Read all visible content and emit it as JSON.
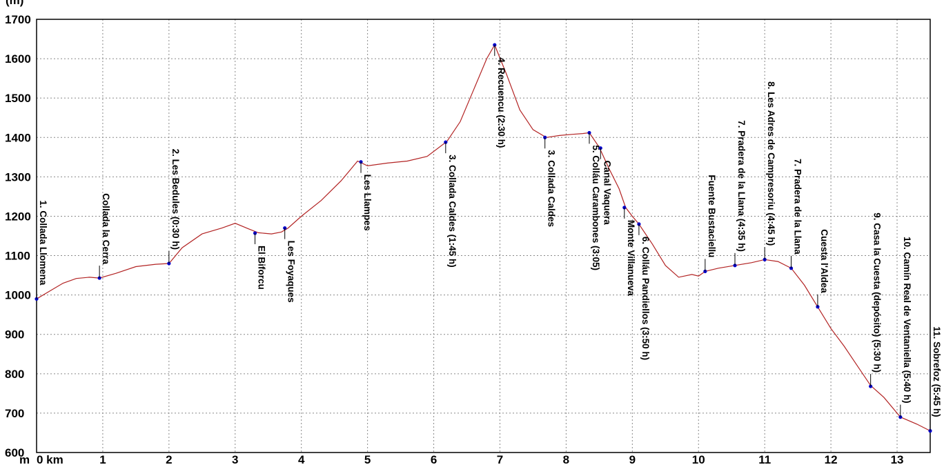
{
  "chart_data": {
    "type": "line",
    "y_unit_label": "(m)",
    "x_axis_prefix": "m",
    "x_first_tick_label": "0 km",
    "ylim": [
      600,
      1700
    ],
    "xlim": [
      0,
      13.5
    ],
    "yticks": [
      600,
      700,
      800,
      900,
      1000,
      1100,
      1200,
      1300,
      1400,
      1500,
      1600,
      1700
    ],
    "xticks": [
      0,
      1,
      2,
      3,
      4,
      5,
      6,
      7,
      8,
      9,
      10,
      11,
      12,
      13
    ],
    "grid": true,
    "colors": {
      "line": "#b22222",
      "point": "#0000cc",
      "grid": "#888888"
    },
    "profile": [
      [
        0,
        990
      ],
      [
        0.2,
        1010
      ],
      [
        0.4,
        1030
      ],
      [
        0.6,
        1042
      ],
      [
        0.8,
        1045
      ],
      [
        0.95,
        1043
      ],
      [
        1.2,
        1055
      ],
      [
        1.5,
        1072
      ],
      [
        1.8,
        1078
      ],
      [
        2.0,
        1080
      ],
      [
        2.2,
        1120
      ],
      [
        2.5,
        1155
      ],
      [
        2.8,
        1170
      ],
      [
        3.0,
        1182
      ],
      [
        3.2,
        1168
      ],
      [
        3.35,
        1158
      ],
      [
        3.55,
        1155
      ],
      [
        3.7,
        1160
      ],
      [
        3.8,
        1170
      ],
      [
        4.0,
        1200
      ],
      [
        4.3,
        1240
      ],
      [
        4.6,
        1290
      ],
      [
        4.85,
        1340
      ],
      [
        5.0,
        1328
      ],
      [
        5.3,
        1335
      ],
      [
        5.6,
        1340
      ],
      [
        5.9,
        1352
      ],
      [
        6.2,
        1390
      ],
      [
        6.4,
        1440
      ],
      [
        6.6,
        1520
      ],
      [
        6.8,
        1600
      ],
      [
        6.92,
        1635
      ],
      [
        7.1,
        1560
      ],
      [
        7.3,
        1470
      ],
      [
        7.5,
        1420
      ],
      [
        7.7,
        1400
      ],
      [
        7.9,
        1405
      ],
      [
        8.1,
        1408
      ],
      [
        8.25,
        1410
      ],
      [
        8.35,
        1412
      ],
      [
        8.5,
        1375
      ],
      [
        8.65,
        1320
      ],
      [
        8.8,
        1270
      ],
      [
        8.9,
        1222
      ],
      [
        9.0,
        1200
      ],
      [
        9.1,
        1180
      ],
      [
        9.3,
        1130
      ],
      [
        9.5,
        1075
      ],
      [
        9.7,
        1045
      ],
      [
        9.9,
        1052
      ],
      [
        10.0,
        1048
      ],
      [
        10.1,
        1060
      ],
      [
        10.3,
        1068
      ],
      [
        10.55,
        1075
      ],
      [
        10.8,
        1082
      ],
      [
        11.0,
        1090
      ],
      [
        11.2,
        1085
      ],
      [
        11.4,
        1068
      ],
      [
        11.6,
        1025
      ],
      [
        11.8,
        970
      ],
      [
        12.0,
        915
      ],
      [
        12.2,
        870
      ],
      [
        12.4,
        820
      ],
      [
        12.6,
        770
      ],
      [
        12.8,
        740
      ],
      [
        13.05,
        690
      ],
      [
        13.3,
        672
      ],
      [
        13.5,
        655
      ]
    ],
    "waypoints": [
      {
        "km": 0,
        "elev": 990,
        "label": "1. Collada Llomena",
        "side": "above"
      },
      {
        "km": 0.95,
        "elev": 1043,
        "label": "Collada la Cerra",
        "side": "above"
      },
      {
        "km": 2.0,
        "elev": 1080,
        "label": "2. Les Bedules (0:30 h)",
        "side": "above"
      },
      {
        "km": 3.3,
        "elev": 1157,
        "label": "El Biforcu",
        "side": "below"
      },
      {
        "km": 3.75,
        "elev": 1170,
        "label": "Les Foyaques",
        "side": "below"
      },
      {
        "km": 4.9,
        "elev": 1338,
        "label": "Les Llampes",
        "side": "below"
      },
      {
        "km": 6.18,
        "elev": 1388,
        "label": "3. Collada Caldes (1:45 h)",
        "side": "below"
      },
      {
        "km": 6.92,
        "elev": 1635,
        "label": "4. Recuencu (2:30 h)",
        "side": "below"
      },
      {
        "km": 7.68,
        "elev": 1400,
        "label": "3. Collada Caldes",
        "side": "below"
      },
      {
        "km": 8.35,
        "elev": 1412,
        "label": "5. Colláu Carambones (3:05)",
        "side": "below"
      },
      {
        "km": 8.52,
        "elev": 1373,
        "label": "Canal Vaquera",
        "side": "below"
      },
      {
        "km": 8.88,
        "elev": 1222,
        "label": "Monte Villanueva",
        "side": "below"
      },
      {
        "km": 9.1,
        "elev": 1180,
        "label": "6. Colláu Pandiellos (3:50 h)",
        "side": "below"
      },
      {
        "km": 10.1,
        "elev": 1060,
        "label": "Fuente Bustaciellu",
        "side": "above"
      },
      {
        "km": 10.55,
        "elev": 1075,
        "label": "7. Pradera de la Llana (4:35 h)",
        "side": "above"
      },
      {
        "km": 11.0,
        "elev": 1090,
        "label": "8. Les Adres de Campresoriu (4:45 h)",
        "side": "above"
      },
      {
        "km": 11.4,
        "elev": 1068,
        "label": "7. Pradera de la Llana",
        "side": "above"
      },
      {
        "km": 11.8,
        "elev": 970,
        "label": "Cuesta l'Aldea",
        "side": "above"
      },
      {
        "km": 12.6,
        "elev": 768,
        "label": "9. Casa la Cuesta (depósito) (5:30 h)",
        "side": "above"
      },
      {
        "km": 13.05,
        "elev": 690,
        "label": "10. Camín Real de Ventaniella (5:40 h)",
        "side": "above"
      },
      {
        "km": 13.5,
        "elev": 655,
        "label": "11. Sobrefoz (5:45 h)",
        "side": "above"
      }
    ]
  }
}
